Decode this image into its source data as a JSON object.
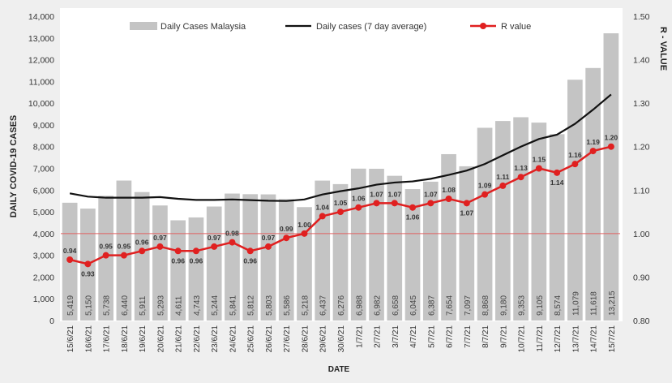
{
  "chart_data": {
    "type": "bar",
    "title": "",
    "xlabel": "DATE",
    "ylabel": "DAILY COVID-19 CASES",
    "y2label": "R - VALUE",
    "ylim": [
      0,
      14000
    ],
    "yticks": [
      "0",
      "1,000",
      "2,000",
      "3,000",
      "4,000",
      "5,000",
      "6,000",
      "7,000",
      "8,000",
      "9,000",
      "10,000",
      "11,000",
      "12,000",
      "13,000",
      "14,000"
    ],
    "y2lim": [
      0.8,
      1.5
    ],
    "y2ticks": [
      "0.80",
      "0.90",
      "1.00",
      "1.10",
      "1.20",
      "1.30",
      "1.40",
      "1.50"
    ],
    "reference_line": {
      "axis": "y2",
      "value": 1.0,
      "color": "#e06060"
    },
    "legend_placement": "top",
    "categories": [
      "15/6/21",
      "16/6/21",
      "17/6/21",
      "18/6/21",
      "19/6/21",
      "20/6/21",
      "21/6/21",
      "22/6/21",
      "23/6/21",
      "24/6/21",
      "25/6/21",
      "26/6/21",
      "27/6/21",
      "28/6/21",
      "29/6/21",
      "30/6/21",
      "1/7/21",
      "2/7/21",
      "3/7/21",
      "4/7/21",
      "5/7/21",
      "6/7/21",
      "7/7/21",
      "8/7/21",
      "9/7/21",
      "10/7/21",
      "11/7/21",
      "12/7/21",
      "13/7/21",
      "14/7/21",
      "15/7/21"
    ],
    "series": [
      {
        "name": "Daily Cases Malaysia",
        "kind": "bar",
        "axis": "y",
        "color": "#c4c4c4",
        "values": [
          5419,
          5150,
          5738,
          6440,
          5911,
          5293,
          4611,
          4743,
          5244,
          5841,
          5812,
          5803,
          5586,
          5218,
          6437,
          6276,
          6988,
          6982,
          6658,
          6045,
          6387,
          7654,
          7097,
          8868,
          9180,
          9353,
          9105,
          8574,
          11079,
          11618,
          13215
        ],
        "labels": [
          "5,419",
          "5,150",
          "5,738",
          "6,440",
          "5,911",
          "5,293",
          "4,611",
          "4,743",
          "5,244",
          "5,841",
          "5,812",
          "5,803",
          "5,586",
          "5,218",
          "6,437",
          "6,276",
          "6,988",
          "6,982",
          "6,658",
          "6,045",
          "6,387",
          "7,654",
          "7,097",
          "8,868",
          "9,180",
          "9,353",
          "9,105",
          "8,574",
          "11,079",
          "11,618",
          "13,215"
        ]
      },
      {
        "name": "Daily cases (7 day average)",
        "kind": "line",
        "axis": "y",
        "color": "#111111",
        "values": [
          5850,
          5700,
          5650,
          5650,
          5650,
          5680,
          5600,
          5550,
          5550,
          5570,
          5540,
          5510,
          5500,
          5570,
          5800,
          5950,
          6080,
          6250,
          6350,
          6400,
          6520,
          6700,
          6900,
          7200,
          7600,
          8000,
          8350,
          8550,
          9050,
          9700,
          10400
        ]
      },
      {
        "name": "R value",
        "kind": "line-markers",
        "axis": "y2",
        "color": "#e02020",
        "values": [
          0.94,
          0.93,
          0.95,
          0.95,
          0.96,
          0.97,
          0.96,
          0.96,
          0.97,
          0.98,
          0.96,
          0.97,
          0.99,
          1.0,
          1.04,
          1.05,
          1.06,
          1.07,
          1.07,
          1.06,
          1.07,
          1.08,
          1.07,
          1.09,
          1.11,
          1.13,
          1.15,
          1.14,
          1.16,
          1.19,
          1.2
        ],
        "labels": [
          "0.94",
          "0.93",
          "0.95",
          "0.95",
          "0.96",
          "0.97",
          "0.96",
          "0.96",
          "0.97",
          "0.98",
          "0.96",
          "0.97",
          "0.99",
          "1.00",
          "1.04",
          "1.05",
          "1.06",
          "1.07",
          "1.07",
          "1.06",
          "1.07",
          "1.08",
          "1.07",
          "1.09",
          "1.11",
          "1.13",
          "1.15",
          "1.14",
          "1.16",
          "1.19",
          "1.20"
        ],
        "label_below": [
          false,
          true,
          false,
          false,
          false,
          false,
          true,
          true,
          false,
          false,
          true,
          false,
          false,
          false,
          false,
          false,
          false,
          false,
          false,
          true,
          false,
          false,
          true,
          false,
          false,
          false,
          false,
          true,
          false,
          false,
          false
        ]
      }
    ]
  }
}
